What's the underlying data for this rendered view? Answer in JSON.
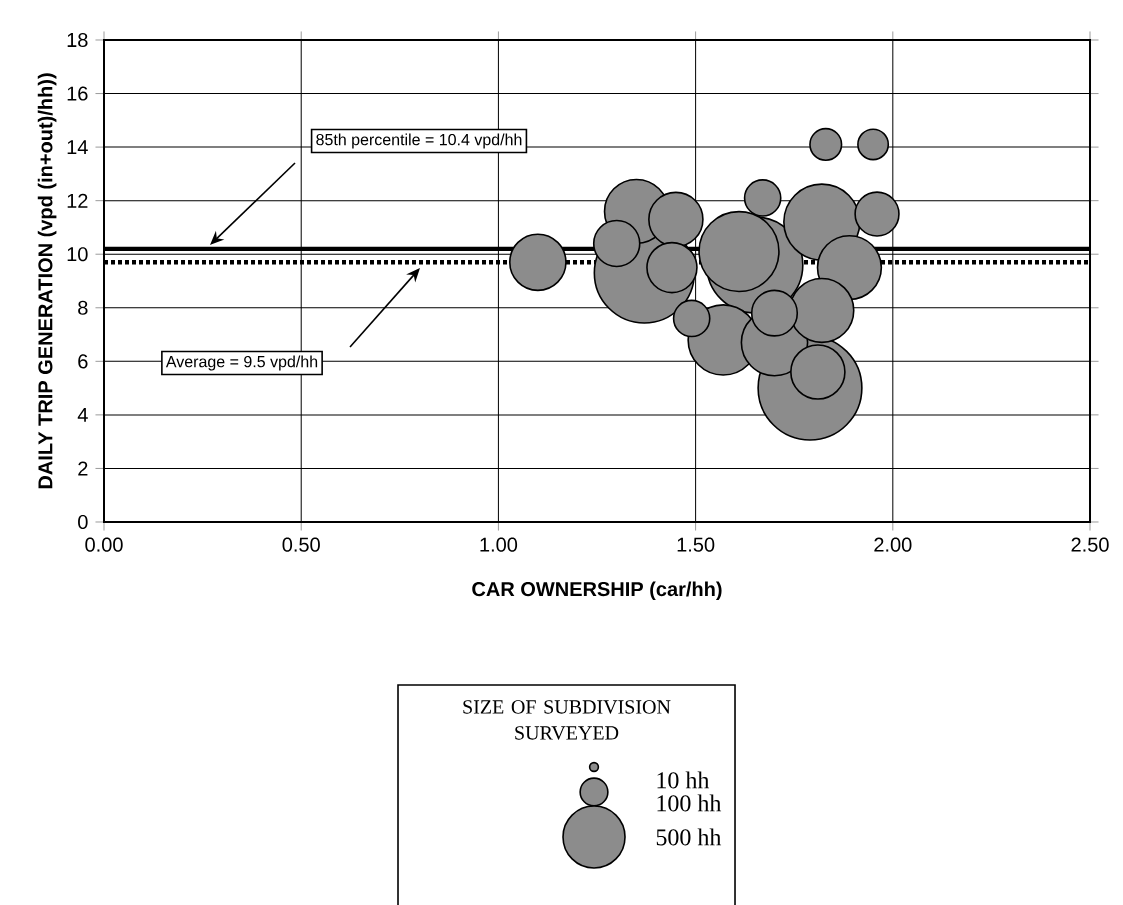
{
  "chart_data": {
    "type": "bubble",
    "xlabel": "CAR OWNERSHIP (car/hh)",
    "ylabel": "DAILY TRIP GENERATION (vpd (in+out)/hh))",
    "legend_title": "SIZE OF SUBDIVISION SURVEYED",
    "color": "#8c8c8c",
    "grid": true,
    "xlim": [
      0,
      2.5
    ],
    "ylim": [
      0,
      18
    ],
    "xticks": [
      {
        "value": 0,
        "label": "0.00"
      },
      {
        "value": 0.5,
        "label": "0.50"
      },
      {
        "value": 1,
        "label": "1.00"
      },
      {
        "value": 1.5,
        "label": "1.50"
      },
      {
        "value": 2,
        "label": "2.00"
      },
      {
        "value": 2.5,
        "label": "2.50"
      }
    ],
    "yticks": [
      0,
      2,
      4,
      6,
      8,
      10,
      12,
      14,
      16,
      18
    ],
    "x": [
      1.79,
      1.37,
      1.65,
      1.61,
      1.82,
      1.57,
      1.7,
      1.35,
      1.89,
      1.82,
      1.1,
      1.45,
      1.81,
      1.44,
      1.3,
      1.7,
      1.96,
      1.67,
      1.49,
      1.83,
      1.95
    ],
    "values": [
      5.0,
      9.3,
      9.6,
      10.1,
      11.2,
      6.8,
      6.7,
      11.6,
      9.5,
      7.9,
      9.7,
      11.3,
      5.6,
      9.5,
      10.4,
      7.8,
      11.5,
      12.1,
      7.6,
      14.1,
      14.1
    ],
    "sizes": [
      1400,
      1300,
      1200,
      830,
      750,
      640,
      570,
      530,
      530,
      530,
      410,
      380,
      380,
      325,
      275,
      270,
      250,
      170,
      170,
      130,
      120
    ],
    "size_legend": [
      {
        "value": 10,
        "label": "10 hh"
      },
      {
        "value": 100,
        "label": "100 hh"
      },
      {
        "value": 500,
        "label": "500 hh"
      }
    ],
    "annotations": [
      "85th percentile = 10.4 vpd/hh",
      "Average = 9.5 vpd/hh"
    ],
    "ref_lines": [
      {
        "axis": "y",
        "value": 10.2,
        "color": "#000000",
        "line_style": "solid"
      },
      {
        "axis": "y",
        "value": 9.7,
        "color": "#000000",
        "line_style": "dotted"
      }
    ]
  }
}
